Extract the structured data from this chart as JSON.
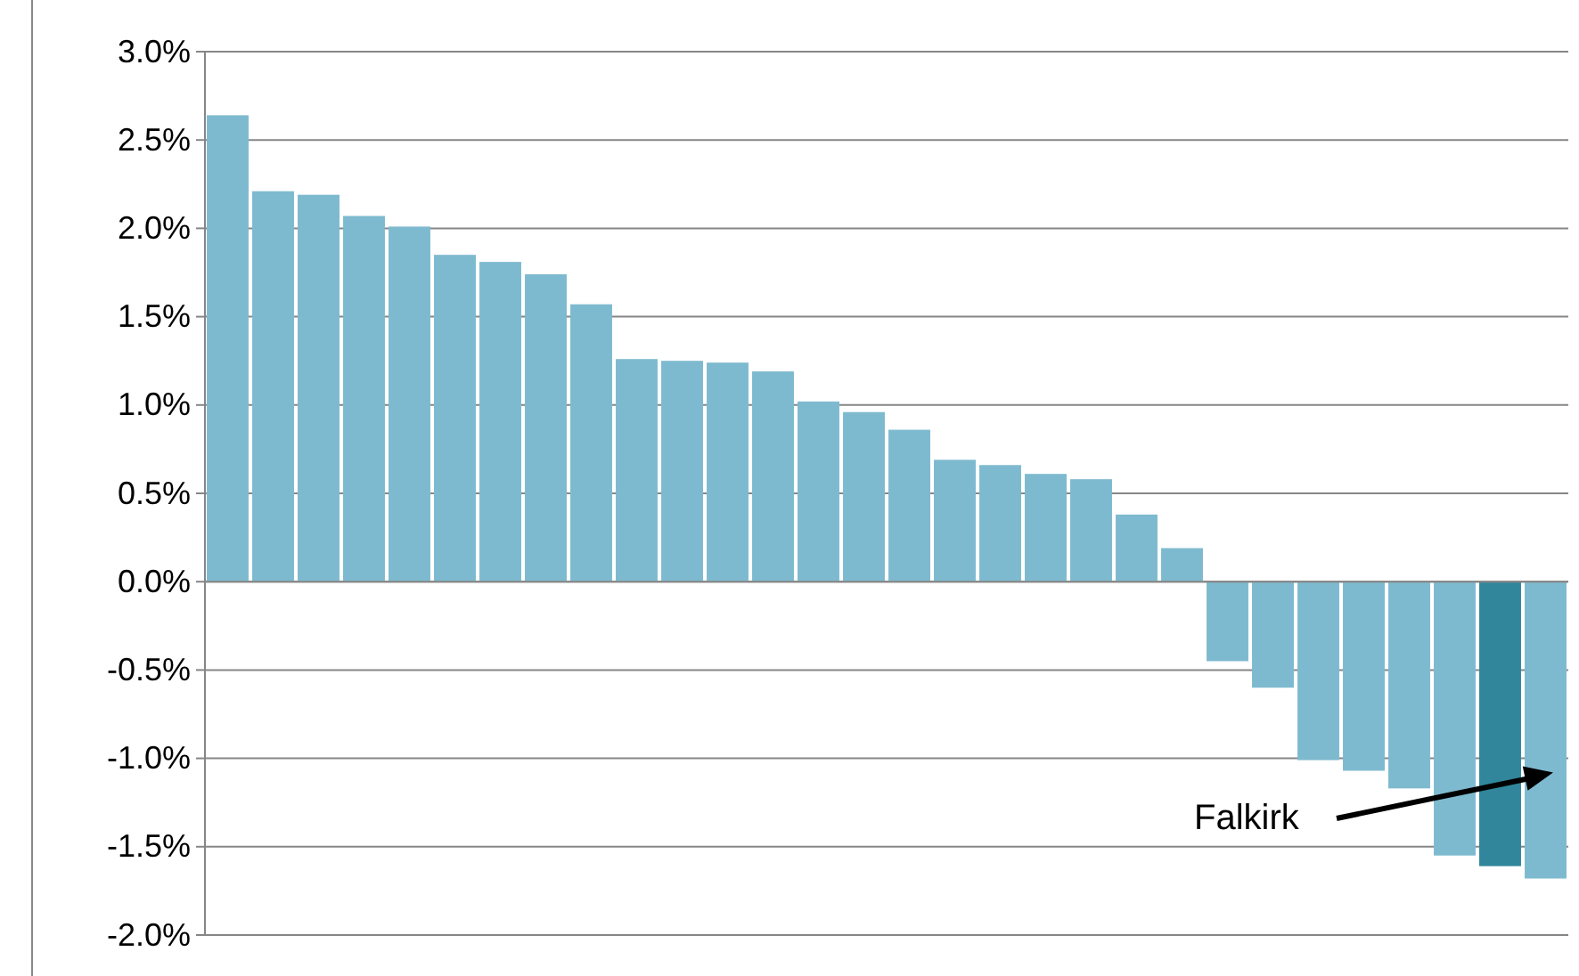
{
  "chart_data": {
    "type": "bar",
    "categories": [
      null,
      null,
      null,
      null,
      null,
      null,
      null,
      null,
      null,
      null,
      null,
      null,
      null,
      null,
      null,
      null,
      null,
      null,
      null,
      null,
      null,
      null,
      null,
      null,
      null,
      null,
      null,
      null,
      null,
      null
    ],
    "values": [
      2.64,
      2.21,
      2.19,
      2.07,
      2.01,
      1.85,
      1.81,
      1.74,
      1.57,
      1.26,
      1.25,
      1.24,
      1.19,
      1.02,
      0.96,
      0.86,
      0.69,
      0.66,
      0.61,
      0.58,
      0.38,
      0.19,
      -0.45,
      -0.6,
      -1.01,
      -1.07,
      -1.17,
      -1.55,
      -1.61,
      -1.68
    ],
    "colors": [
      "#7ebacf",
      "#7ebacf",
      "#7ebacf",
      "#7ebacf",
      "#7ebacf",
      "#7ebacf",
      "#7ebacf",
      "#7ebacf",
      "#7ebacf",
      "#7ebacf",
      "#7ebacf",
      "#7ebacf",
      "#7ebacf",
      "#7ebacf",
      "#7ebacf",
      "#7ebacf",
      "#7ebacf",
      "#7ebacf",
      "#7ebacf",
      "#7ebacf",
      "#7ebacf",
      "#7ebacf",
      "#7ebacf",
      "#7ebacf",
      "#7ebacf",
      "#7ebacf",
      "#7ebacf",
      "#7ebacf",
      "#31869b",
      "#7ebacf"
    ],
    "ylim": [
      -2,
      3
    ],
    "yticks": [
      {
        "value": -2,
        "label": "-2.0%"
      },
      {
        "value": -1.5,
        "label": "-1.5%"
      },
      {
        "value": -1,
        "label": "-1.0%"
      },
      {
        "value": -0.5,
        "label": "-0.5%"
      },
      {
        "value": 0,
        "label": "0.0%"
      },
      {
        "value": 0.5,
        "label": "0.5%"
      },
      {
        "value": 1,
        "label": "1.0%"
      },
      {
        "value": 1.5,
        "label": "1.5%"
      },
      {
        "value": 2,
        "label": "2.0%"
      },
      {
        "value": 2.5,
        "label": "2.5%"
      },
      {
        "value": 3,
        "label": "3.0%"
      }
    ],
    "grid": "y",
    "annotations": [
      "Falkirk"
    ]
  }
}
